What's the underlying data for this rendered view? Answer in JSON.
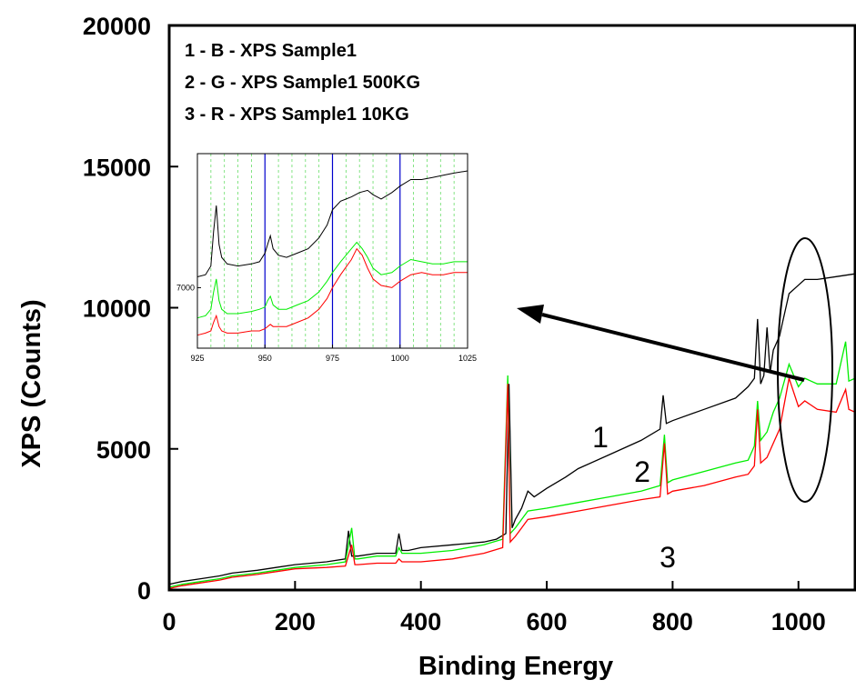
{
  "chart_data": [
    {
      "type": "line",
      "xlabel": "Binding Energy",
      "ylabel": "XPS (Counts)",
      "xlim": [
        0,
        1090
      ],
      "ylim": [
        0,
        20000
      ],
      "x_ticks": [
        "0",
        "200",
        "400",
        "600",
        "800",
        "1000"
      ],
      "y_ticks": [
        "0",
        "5000",
        "10000",
        "15000",
        "20000"
      ],
      "legend": [
        "1 - B - XPS Sample1",
        "2 - G - XPS Sample1 500KG",
        "3 - R - XPS Sample1 10KG"
      ],
      "legend_position": "top-left",
      "curve_labels": [
        "1",
        "2",
        "3"
      ],
      "grid": false,
      "series": [
        {
          "color": "#000000",
          "x": [
            0,
            20,
            50,
            80,
            100,
            140,
            170,
            200,
            250,
            280,
            285,
            290,
            300,
            330,
            360,
            365,
            370,
            380,
            400,
            450,
            500,
            520,
            535,
            540,
            545,
            550,
            560,
            570,
            580,
            600,
            630,
            650,
            700,
            750,
            780,
            785,
            790,
            800,
            850,
            900,
            920,
            930,
            935,
            940,
            945,
            950,
            955,
            960,
            970,
            975,
            985,
            1000,
            1010,
            1030,
            1060,
            1090
          ],
          "y": [
            200,
            300,
            400,
            500,
            600,
            700,
            800,
            900,
            1000,
            1100,
            2100,
            1200,
            1200,
            1300,
            1300,
            2000,
            1400,
            1400,
            1500,
            1600,
            1700,
            1800,
            2000,
            7300,
            2200,
            2500,
            2900,
            3500,
            3300,
            3600,
            4000,
            4300,
            4800,
            5300,
            5700,
            6900,
            5900,
            6000,
            6400,
            6800,
            7200,
            7500,
            9600,
            7300,
            7600,
            9300,
            7700,
            8500,
            9000,
            9500,
            10500,
            10800,
            11000,
            11000,
            11100,
            11200
          ]
        },
        {
          "color": "#00ee00",
          "x": [
            0,
            20,
            50,
            80,
            100,
            140,
            170,
            200,
            250,
            280,
            290,
            295,
            300,
            330,
            360,
            365,
            370,
            400,
            450,
            500,
            530,
            538,
            542,
            550,
            560,
            570,
            600,
            650,
            700,
            750,
            780,
            787,
            792,
            800,
            850,
            900,
            920,
            930,
            935,
            940,
            950,
            960,
            970,
            985,
            1000,
            1010,
            1030,
            1060,
            1075,
            1080,
            1090
          ],
          "y": [
            100,
            200,
            300,
            400,
            500,
            600,
            700,
            800,
            900,
            1000,
            2200,
            1100,
            1100,
            1200,
            1200,
            1500,
            1300,
            1300,
            1400,
            1600,
            1800,
            7600,
            2000,
            2200,
            2500,
            2800,
            2900,
            3100,
            3300,
            3500,
            3700,
            5500,
            3800,
            3900,
            4200,
            4500,
            4600,
            5100,
            6700,
            5300,
            5600,
            6300,
            6800,
            8000,
            7200,
            7500,
            7300,
            7300,
            8800,
            7400,
            7500
          ]
        },
        {
          "color": "#ff0000",
          "x": [
            0,
            20,
            50,
            80,
            100,
            140,
            170,
            200,
            250,
            280,
            290,
            295,
            300,
            330,
            360,
            365,
            370,
            400,
            450,
            500,
            530,
            538,
            542,
            550,
            560,
            570,
            600,
            650,
            700,
            750,
            780,
            787,
            792,
            800,
            850,
            900,
            920,
            930,
            935,
            940,
            950,
            960,
            970,
            985,
            1000,
            1010,
            1030,
            1060,
            1075,
            1080,
            1090
          ],
          "y": [
            50,
            150,
            250,
            350,
            450,
            550,
            650,
            750,
            800,
            850,
            1600,
            900,
            900,
            950,
            950,
            1100,
            1000,
            1000,
            1100,
            1300,
            1500,
            7300,
            1700,
            1900,
            2200,
            2500,
            2600,
            2800,
            3000,
            3200,
            3300,
            5200,
            3400,
            3500,
            3700,
            4000,
            4100,
            4400,
            6400,
            4500,
            4700,
            5200,
            5700,
            7500,
            6500,
            6700,
            6400,
            6300,
            7100,
            6400,
            6300
          ]
        }
      ]
    },
    {
      "type": "line",
      "xlim": [
        925,
        1025
      ],
      "x_ticks": [
        "925",
        "950",
        "975",
        "1000",
        "1025"
      ],
      "y_ticks": [
        "7000"
      ],
      "grid": true,
      "series": [
        {
          "color": "#000000",
          "x": [
            925,
            928,
            930,
            931,
            932,
            933,
            934,
            936,
            940,
            945,
            948,
            950,
            951,
            952,
            953,
            955,
            958,
            962,
            966,
            970,
            973,
            975,
            978,
            982,
            985,
            988,
            990,
            993,
            997,
            1000,
            1004,
            1008,
            1012,
            1016,
            1020,
            1025
          ],
          "y": [
            7250,
            7300,
            7500,
            8300,
            8900,
            8000,
            7700,
            7550,
            7500,
            7550,
            7600,
            7800,
            8000,
            8200,
            7900,
            7750,
            7700,
            7800,
            7900,
            8150,
            8450,
            8800,
            9000,
            9100,
            9200,
            9250,
            9150,
            9050,
            9200,
            9350,
            9500,
            9500,
            9550,
            9600,
            9650,
            9700
          ]
        },
        {
          "color": "#00ee00",
          "x": [
            925,
            928,
            930,
            931,
            932,
            933,
            934,
            936,
            940,
            945,
            948,
            950,
            951,
            952,
            953,
            955,
            958,
            962,
            966,
            970,
            973,
            975,
            978,
            982,
            984,
            986,
            988,
            990,
            993,
            997,
            1000,
            1004,
            1008,
            1012,
            1016,
            1020,
            1025
          ],
          "y": [
            6300,
            6350,
            6500,
            6900,
            7200,
            6700,
            6500,
            6400,
            6400,
            6450,
            6500,
            6550,
            6700,
            6800,
            6600,
            6500,
            6500,
            6600,
            6700,
            6900,
            7150,
            7350,
            7600,
            7900,
            8050,
            7900,
            7700,
            7450,
            7300,
            7350,
            7500,
            7650,
            7600,
            7550,
            7550,
            7600,
            7600
          ]
        },
        {
          "color": "#ff0000",
          "x": [
            925,
            928,
            930,
            931,
            932,
            933,
            934,
            936,
            940,
            945,
            948,
            950,
            951,
            952,
            953,
            955,
            958,
            962,
            966,
            970,
            973,
            975,
            978,
            982,
            984,
            986,
            988,
            990,
            993,
            997,
            1000,
            1004,
            1008,
            1012,
            1016,
            1020,
            1025
          ],
          "y": [
            5900,
            5950,
            6000,
            6200,
            6350,
            6100,
            6000,
            5950,
            5950,
            6000,
            6000,
            6050,
            6100,
            6150,
            6100,
            6100,
            6100,
            6200,
            6300,
            6500,
            6750,
            7000,
            7300,
            7650,
            7900,
            7750,
            7450,
            7200,
            7050,
            7000,
            7150,
            7300,
            7350,
            7300,
            7300,
            7350,
            7350
          ]
        }
      ]
    }
  ]
}
